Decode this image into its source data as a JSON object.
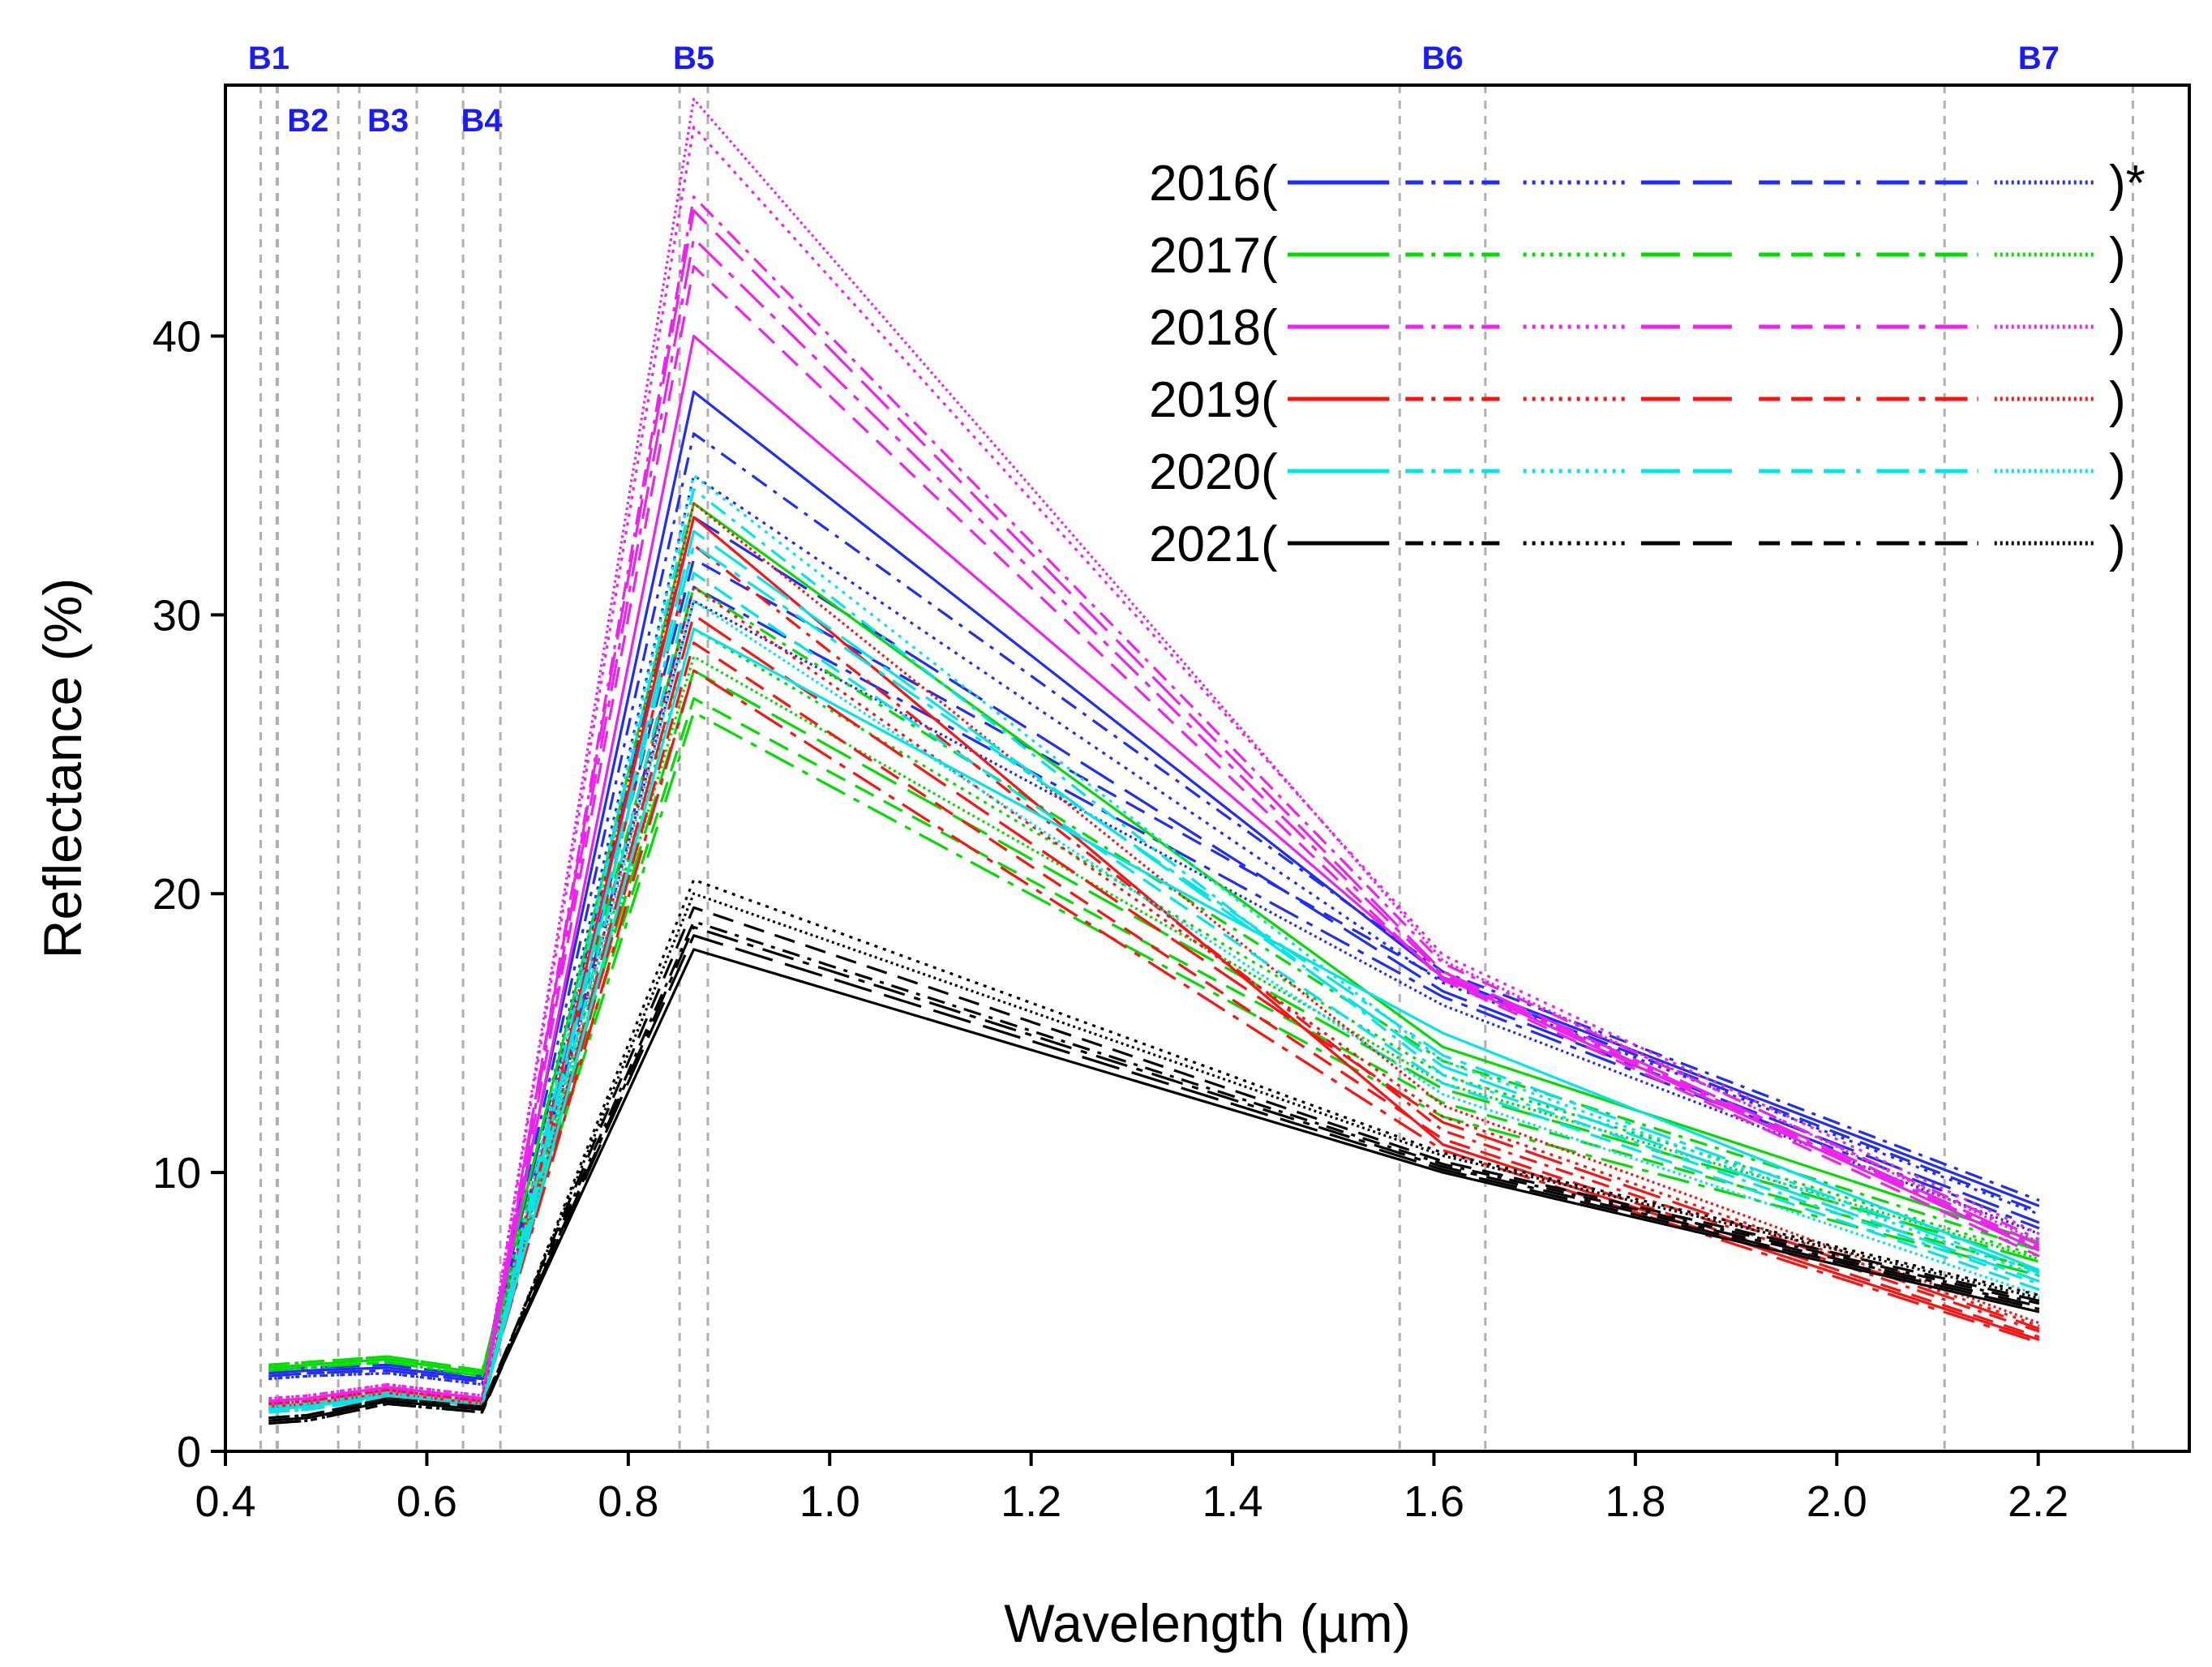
{
  "chart_data": {
    "type": "line",
    "title": "",
    "xlabel": "Wavelength (µm)",
    "ylabel": "Reflectance (%)",
    "xlim": [
      0.4,
      2.35
    ],
    "ylim": [
      0,
      49
    ],
    "grid": false,
    "legend_position": "top-right",
    "legend_suffix": ")*",
    "legend_close": ")",
    "x_tick_values": [
      0.4,
      0.6,
      0.8,
      1.0,
      1.2,
      1.4,
      1.6,
      1.8,
      2.0,
      2.2
    ],
    "x_tick_labels": [
      "0.4",
      "0.6",
      "0.8",
      "1.0",
      "1.2",
      "1.4",
      "1.6",
      "1.8",
      "2.0",
      "2.2"
    ],
    "y_tick_values": [
      0,
      10,
      20,
      30,
      40
    ],
    "y_tick_labels": [
      "0",
      "10",
      "20",
      "30",
      "40"
    ],
    "band_label_color": "#1a1aff",
    "band_line_color": "#b0b0b0",
    "bands": [
      {
        "name": "B1",
        "label": "B1",
        "edges": [
          0.435,
          0.451
        ],
        "label_row": 0
      },
      {
        "name": "B2",
        "label": "B2",
        "edges": [
          0.452,
          0.512
        ],
        "label_row": 1
      },
      {
        "name": "B3",
        "label": "B3",
        "edges": [
          0.533,
          0.59
        ],
        "label_row": 1
      },
      {
        "name": "B4",
        "label": "B4",
        "edges": [
          0.636,
          0.673
        ],
        "label_row": 1
      },
      {
        "name": "B5",
        "label": "B5",
        "edges": [
          0.851,
          0.879
        ],
        "label_row": 0
      },
      {
        "name": "B6",
        "label": "B6",
        "edges": [
          1.566,
          1.651
        ],
        "label_row": 0
      },
      {
        "name": "B7",
        "label": "B7",
        "edges": [
          2.107,
          2.294
        ],
        "label_row": 0
      }
    ],
    "x": [
      0.443,
      0.482,
      0.561,
      0.655,
      0.865,
      1.609,
      2.201
    ],
    "line_styles": [
      "solid",
      "dashdot",
      "dotted",
      "longdash",
      "dashed",
      "dashdotlong",
      "densedot"
    ],
    "series": [
      {
        "name": "2016",
        "color": "#1f2bff",
        "lines": [
          [
            2.8,
            2.9,
            3.0,
            2.6,
            38.0,
            17.0,
            8.8
          ],
          [
            2.7,
            2.8,
            2.9,
            2.5,
            36.5,
            17.2,
            9.0
          ],
          [
            2.6,
            2.7,
            2.8,
            2.4,
            35.0,
            16.8,
            8.5
          ],
          [
            2.9,
            3.0,
            3.1,
            2.7,
            33.5,
            16.5,
            8.2
          ],
          [
            2.8,
            2.9,
            3.0,
            2.6,
            32.0,
            16.9,
            8.6
          ],
          [
            2.7,
            2.8,
            2.9,
            2.5,
            31.0,
            16.3,
            8.0
          ],
          [
            2.6,
            2.7,
            2.8,
            2.4,
            30.5,
            16.0,
            7.8
          ]
        ]
      },
      {
        "name": "2017",
        "color": "#00dd00",
        "lines": [
          [
            3.0,
            3.1,
            3.3,
            2.8,
            34.0,
            14.5,
            7.5
          ],
          [
            3.1,
            3.2,
            3.4,
            2.9,
            31.0,
            14.0,
            7.2
          ],
          [
            2.9,
            3.0,
            3.2,
            2.7,
            29.5,
            13.5,
            7.0
          ],
          [
            3.0,
            3.1,
            3.3,
            2.8,
            28.0,
            13.0,
            6.8
          ],
          [
            3.1,
            3.2,
            3.4,
            2.9,
            27.0,
            12.5,
            6.5
          ],
          [
            2.9,
            3.0,
            3.2,
            2.7,
            26.5,
            12.0,
            6.3
          ],
          [
            3.0,
            3.1,
            3.3,
            2.8,
            28.5,
            13.2,
            6.9
          ]
        ]
      },
      {
        "name": "2018",
        "color": "#ee22ee",
        "lines": [
          [
            1.8,
            1.9,
            2.3,
            1.9,
            40.0,
            17.0,
            7.2
          ],
          [
            1.7,
            1.8,
            2.2,
            1.8,
            45.0,
            17.5,
            7.6
          ],
          [
            1.9,
            2.0,
            2.4,
            2.0,
            47.5,
            17.8,
            7.8
          ],
          [
            1.8,
            1.9,
            2.3,
            1.9,
            44.5,
            17.2,
            7.4
          ],
          [
            1.7,
            1.8,
            2.2,
            1.8,
            42.5,
            16.9,
            7.0
          ],
          [
            1.8,
            1.9,
            2.3,
            1.9,
            43.5,
            17.1,
            7.3
          ],
          [
            1.9,
            2.0,
            2.4,
            2.0,
            48.5,
            17.6,
            7.5
          ]
        ]
      },
      {
        "name": "2019",
        "color": "#ff1111",
        "lines": [
          [
            1.6,
            1.7,
            2.1,
            1.7,
            33.5,
            11.0,
            4.0
          ],
          [
            1.5,
            1.6,
            2.0,
            1.6,
            32.5,
            11.5,
            4.3
          ],
          [
            1.7,
            1.8,
            2.2,
            1.8,
            31.0,
            12.0,
            4.5
          ],
          [
            1.6,
            1.7,
            2.1,
            1.7,
            30.0,
            11.8,
            4.4
          ],
          [
            1.5,
            1.6,
            2.0,
            1.6,
            29.0,
            11.2,
            4.1
          ],
          [
            1.6,
            1.7,
            2.1,
            1.7,
            28.0,
            10.8,
            3.9
          ],
          [
            1.7,
            1.8,
            2.2,
            1.8,
            34.0,
            12.4,
            4.6
          ]
        ]
      },
      {
        "name": "2020",
        "color": "#00e5e5",
        "lines": [
          [
            1.5,
            1.6,
            2.0,
            1.6,
            29.5,
            15.0,
            6.5
          ],
          [
            1.4,
            1.5,
            1.9,
            1.5,
            34.5,
            13.5,
            6.0
          ],
          [
            1.6,
            1.7,
            2.1,
            1.7,
            35.0,
            14.0,
            6.3
          ],
          [
            1.5,
            1.6,
            2.0,
            1.6,
            33.0,
            13.8,
            6.1
          ],
          [
            1.4,
            1.5,
            1.9,
            1.5,
            31.5,
            13.2,
            5.8
          ],
          [
            1.5,
            1.6,
            2.0,
            1.6,
            32.5,
            14.2,
            6.4
          ],
          [
            1.6,
            1.7,
            2.1,
            1.7,
            30.5,
            12.8,
            5.6
          ]
        ]
      },
      {
        "name": "2021",
        "color": "#000000",
        "lines": [
          [
            1.1,
            1.2,
            1.8,
            1.5,
            18.0,
            10.0,
            5.0
          ],
          [
            1.2,
            1.3,
            1.9,
            1.6,
            19.0,
            10.3,
            5.3
          ],
          [
            1.0,
            1.1,
            1.7,
            1.4,
            20.5,
            10.7,
            5.6
          ],
          [
            1.1,
            1.2,
            1.8,
            1.5,
            18.5,
            10.1,
            5.1
          ],
          [
            1.2,
            1.3,
            1.9,
            1.6,
            19.5,
            10.4,
            5.4
          ],
          [
            1.0,
            1.1,
            1.7,
            1.4,
            18.8,
            10.2,
            5.2
          ],
          [
            1.1,
            1.2,
            1.8,
            1.5,
            20.0,
            10.6,
            5.5
          ]
        ]
      }
    ]
  }
}
